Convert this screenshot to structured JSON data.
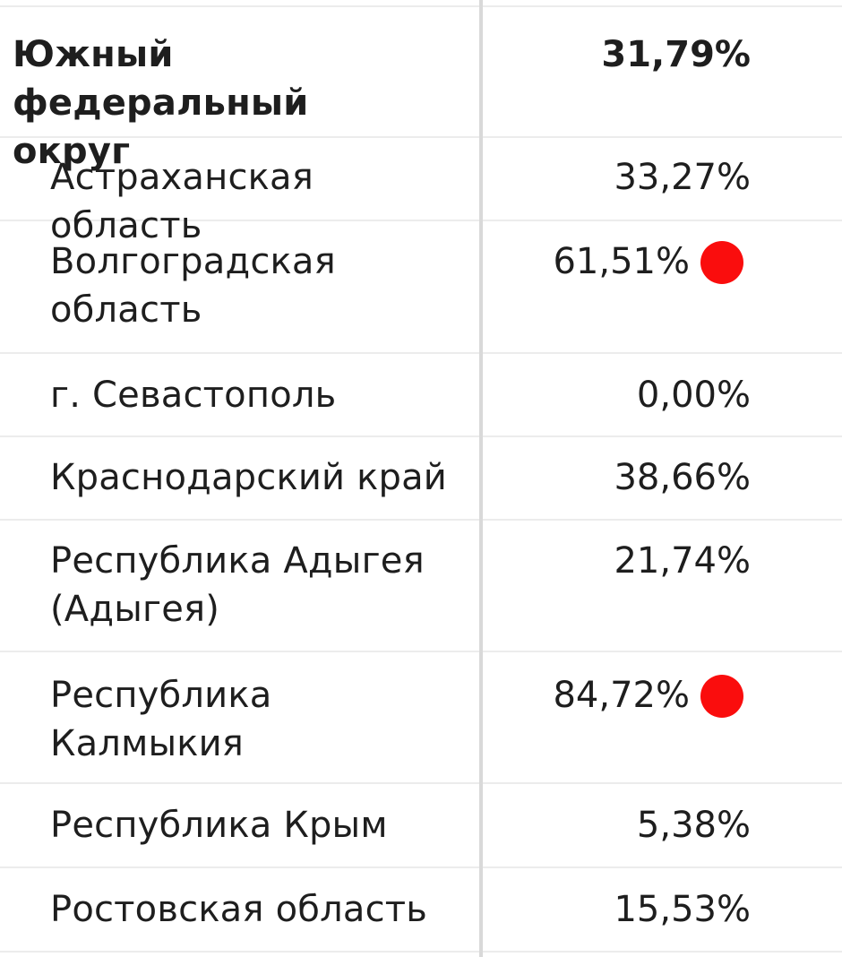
{
  "district": {
    "name": "Южный федеральный округ",
    "value": "31,79%"
  },
  "regions": [
    {
      "name": "Астраханская область",
      "value": "33,27%",
      "marked": false
    },
    {
      "name": "Волгоградская область",
      "value": "61,51%",
      "marked": true
    },
    {
      "name": "г. Севастополь",
      "value": "0,00%",
      "marked": false
    },
    {
      "name": "Краснодарский край",
      "value": "38,66%",
      "marked": false
    },
    {
      "name": "Республика Адыгея (Адыгея)",
      "value": "21,74%",
      "marked": false
    },
    {
      "name": "Республика Калмыкия",
      "value": "84,72%",
      "marked": true
    },
    {
      "name": "Республика Крым",
      "value": "5,38%",
      "marked": false
    },
    {
      "name": "Ростовская область",
      "value": "15,53%",
      "marked": false
    }
  ],
  "colors": {
    "marker": "#fa0d0d",
    "divider": "#ececec",
    "text": "#1e1e1e"
  }
}
